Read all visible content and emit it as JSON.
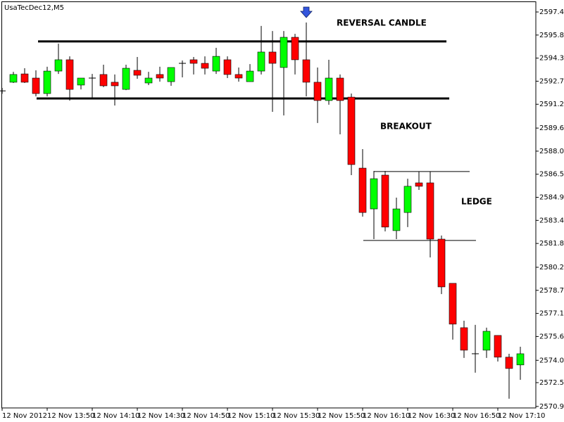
{
  "chart_data": {
    "type": "candlestick",
    "title": "UsaTecDec12,M5",
    "up_color": "#00ff00",
    "down_color": "#ff0000",
    "categories": [
      "12 Nov 2012",
      null,
      null,
      null,
      "12 Nov 13:50",
      null,
      null,
      null,
      "12 Nov 14:10",
      null,
      null,
      null,
      "12 Nov 14:30",
      null,
      null,
      null,
      "12 Nov 14:50",
      null,
      null,
      null,
      "12 Nov 15:10",
      null,
      null,
      null,
      "12 Nov 15:30",
      null,
      null,
      null,
      "12 Nov 15:50",
      null,
      null,
      null,
      "12 Nov 16:10",
      null,
      null,
      null,
      "12 Nov 16:30",
      null,
      null,
      null,
      "12 Nov 16:50",
      null,
      null,
      null,
      "12 Nov 17:10",
      null,
      null
    ],
    "open": [
      2592.1,
      2592.68,
      2593.24,
      2592.96,
      2591.92,
      2593.43,
      2594.19,
      2592.49,
      2592.96,
      2593.2,
      2592.68,
      2592.2,
      2593.48,
      2592.63,
      2593.2,
      2592.72,
      2593.95,
      2594.19,
      2593.95,
      2593.43,
      2594.19,
      2593.2,
      2592.72,
      2593.43,
      2594.71,
      2593.67,
      2595.7,
      2594.19,
      2592.68,
      2591.45,
      2592.96,
      2591.68,
      2586.91,
      2584.17,
      2586.44,
      2582.71,
      2583.93,
      2585.92,
      2585.92,
      2582.14,
      2579.17,
      2576.19,
      2574.44,
      2574.68,
      2575.67,
      2574.21,
      2573.69
    ],
    "high": [
      2592.3,
      2593.38,
      2593.62,
      2593.48,
      2593.72,
      2595.27,
      2594.42,
      2592.96,
      2593.24,
      2593.86,
      2593.2,
      2593.86,
      2594.38,
      2593.38,
      2593.72,
      2593.67,
      2594.14,
      2594.38,
      2594.42,
      2594.99,
      2594.42,
      2593.67,
      2593.9,
      2596.46,
      2596.12,
      2596.12,
      2595.93,
      2596.69,
      2593.67,
      2594.19,
      2593.2,
      2591.92,
      2588.19,
      2586.72,
      2586.72,
      2584.93,
      2586.2,
      2586.68,
      2586.68,
      2582.38,
      2579.17,
      2576.66,
      2576.38,
      2576.19,
      2575.67,
      2574.44,
      2574.91
    ],
    "low": [
      2591.9,
      2592.63,
      2592.63,
      2591.73,
      2591.73,
      2593.24,
      2591.45,
      2592.2,
      2591.59,
      2592.35,
      2591.12,
      2592.15,
      2592.91,
      2592.49,
      2592.72,
      2592.44,
      2593.01,
      2593.2,
      2593.2,
      2593.24,
      2592.96,
      2592.72,
      2592.72,
      2593.2,
      2590.69,
      2590.45,
      2593.2,
      2591.73,
      2589.94,
      2591.17,
      2589.18,
      2586.44,
      2583.65,
      2582.14,
      2582.66,
      2582.14,
      2582.95,
      2585.45,
      2580.91,
      2578.45,
      2575.39,
      2574.16,
      2573.17,
      2574.16,
      2573.92,
      2571.42,
      2572.69
    ],
    "close": [
      2592.1,
      2593.2,
      2592.68,
      2591.92,
      2593.43,
      2594.19,
      2592.2,
      2592.96,
      2592.96,
      2592.44,
      2592.44,
      2593.62,
      2593.15,
      2592.96,
      2592.96,
      2593.67,
      2593.95,
      2593.95,
      2593.62,
      2594.42,
      2593.2,
      2592.96,
      2593.43,
      2594.71,
      2593.95,
      2595.7,
      2594.19,
      2592.68,
      2591.45,
      2592.96,
      2591.45,
      2587.15,
      2583.93,
      2586.2,
      2582.95,
      2584.17,
      2585.69,
      2585.69,
      2582.14,
      2578.93,
      2576.43,
      2574.68,
      2574.44,
      2575.95,
      2574.21,
      2573.45,
      2574.44
    ],
    "ylim": [
      2570.8,
      2598.11
    ],
    "yticks": [
      {
        "value": 2597.4,
        "label": "2597.40"
      },
      {
        "value": 2595.85,
        "label": "2595.85"
      },
      {
        "value": 2594.3,
        "label": "2594.30"
      },
      {
        "value": 2592.75,
        "label": "2592.75"
      },
      {
        "value": 2591.2,
        "label": "2591.20"
      },
      {
        "value": 2589.6,
        "label": "2589.60"
      },
      {
        "value": 2588.05,
        "label": "2588.05"
      },
      {
        "value": 2586.5,
        "label": "2586.50"
      },
      {
        "value": 2584.95,
        "label": "2584.95"
      },
      {
        "value": 2583.4,
        "label": "2583.40"
      },
      {
        "value": 2581.85,
        "label": "2581.85"
      },
      {
        "value": 2580.25,
        "label": "2580.25"
      },
      {
        "value": 2578.7,
        "label": "2578.70"
      },
      {
        "value": 2577.15,
        "label": "2577.15"
      },
      {
        "value": 2575.6,
        "label": "2575.60"
      },
      {
        "value": 2574,
        "label": "2574.00"
      },
      {
        "value": 2572.5,
        "label": "2572.50"
      },
      {
        "value": 2570.9,
        "label": "2570.90"
      }
    ],
    "levels": [
      {
        "value": 2595.42,
        "from": 3.19,
        "to": 39.44,
        "width": 3
      },
      {
        "value": 2591.59,
        "from": 3.06,
        "to": 39.69,
        "width": 3
      },
      {
        "value": 2586.68,
        "from": 33,
        "to": 41.5,
        "width": 1
      },
      {
        "value": 2582.05,
        "from": 32.06,
        "to": 42.06,
        "width": 1
      }
    ],
    "arrow": {
      "index": 27,
      "color": "#3355dd"
    },
    "annotations": [
      "REVERSAL CANDLE",
      "BREAKOUT",
      "LEDGE"
    ]
  }
}
